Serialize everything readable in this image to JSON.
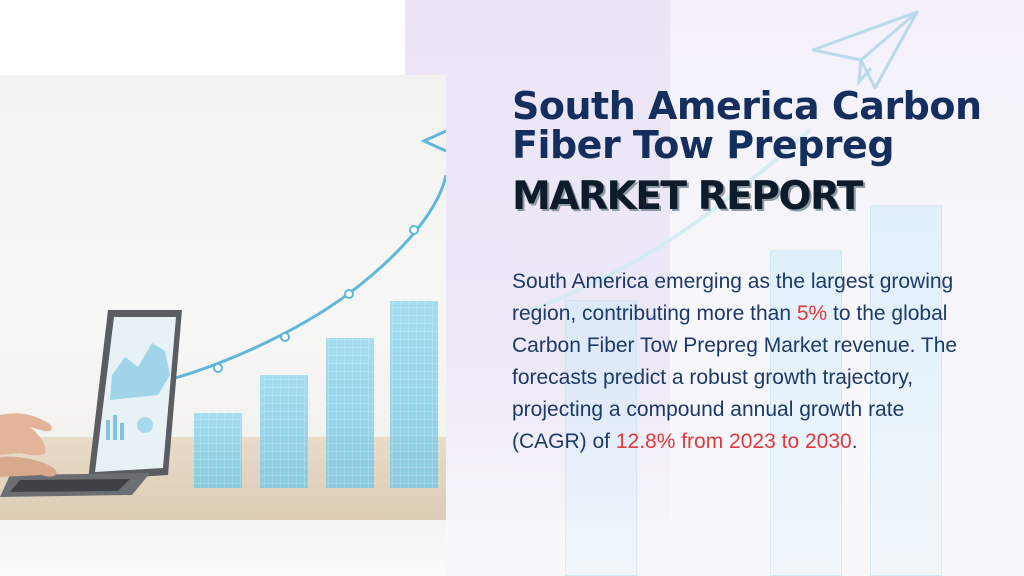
{
  "title": {
    "line1": "South America Carbon",
    "line2": "Fiber Tow Prepreg",
    "line3": "MARKET REPORT"
  },
  "description": {
    "part1": "South America emerging as the largest growing region, contributing more than ",
    "highlight1": "5%",
    "part2": " to the global Carbon Fiber Tow Prepreg Market revenue. The forecasts predict a robust growth trajectory, projecting a compound annual growth rate (CAGR) of ",
    "highlight2": "12.8% from 2023 to 2030",
    "part3": "."
  },
  "colors": {
    "title": "#142f5d",
    "body": "#1b3a6b",
    "highlight": "#e0393c",
    "bars": "#8fd3ea"
  },
  "icons": [
    "paper-plane-icon",
    "growth-arrow-icon",
    "laptop-icon"
  ]
}
